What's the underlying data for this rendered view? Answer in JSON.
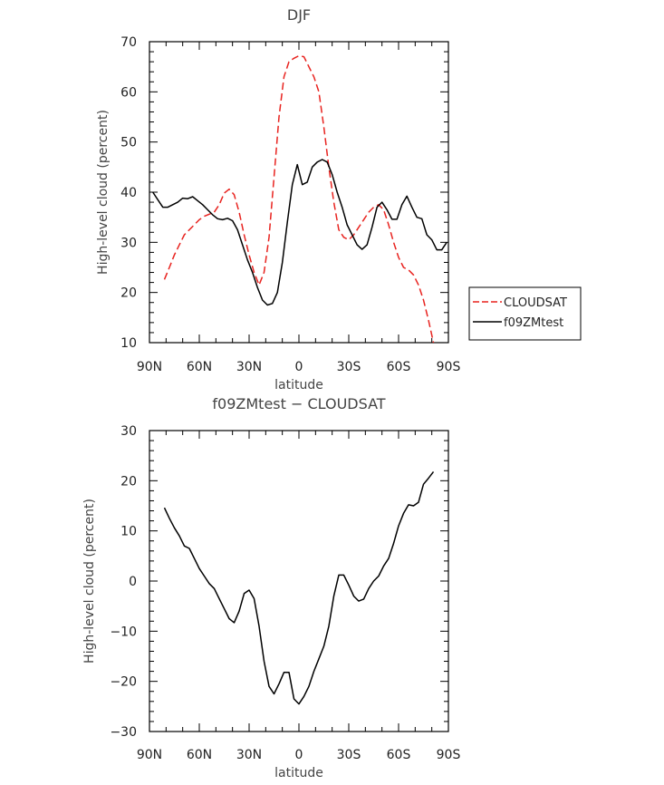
{
  "chart_data": [
    {
      "type": "line",
      "title": "DJF",
      "xlabel": "latitude",
      "ylabel": "High-level cloud (percent)",
      "xlim": [
        90,
        -90
      ],
      "ylim": [
        10,
        70
      ],
      "xticks": [
        90,
        60,
        30,
        0,
        -30,
        -60,
        -90
      ],
      "xtick_labels": [
        "90N",
        "60N",
        "30N",
        "0",
        "30S",
        "60S",
        "90S"
      ],
      "yticks": [
        10,
        20,
        30,
        40,
        50,
        60,
        70
      ],
      "ytick_labels": [
        "10",
        "20",
        "30",
        "40",
        "50",
        "60",
        "70"
      ],
      "legend_position": "right",
      "series": [
        {
          "name": "CLOUDSAT",
          "color": "#e8231f",
          "dash": "dashed",
          "x": [
            81,
            78,
            75,
            72,
            69,
            66,
            63,
            60,
            57,
            54,
            51,
            48,
            45,
            42,
            39,
            36,
            33,
            30,
            27,
            24,
            21,
            18,
            15,
            12,
            9,
            6,
            3,
            0,
            -3,
            -6,
            -9,
            -12,
            -15,
            -18,
            -21,
            -24,
            -27,
            -30,
            -33,
            -36,
            -39,
            -42,
            -45,
            -48,
            -51,
            -54,
            -57,
            -60,
            -63,
            -66,
            -69,
            -72,
            -75,
            -78,
            -81
          ],
          "values": [
            22.6,
            25.0,
            27.5,
            29.5,
            31.5,
            32.5,
            33.5,
            34.5,
            35.2,
            35.6,
            36.0,
            37.5,
            39.8,
            40.6,
            39.5,
            36.0,
            31.5,
            27.5,
            24.0,
            21.5,
            24.0,
            31.0,
            43.0,
            55.0,
            63.0,
            66.0,
            66.7,
            67.2,
            67.0,
            65.0,
            63.0,
            60.0,
            53.0,
            45.0,
            38.0,
            32.5,
            31.0,
            30.5,
            31.5,
            33.0,
            34.5,
            36.0,
            37.0,
            37.5,
            36.5,
            33.5,
            30.0,
            27.0,
            25.0,
            24.5,
            23.5,
            21.5,
            18.5,
            14.5,
            10.0
          ]
        },
        {
          "name": "f09ZMtest",
          "color": "#000000",
          "dash": "solid",
          "x": [
            88,
            85,
            82,
            79,
            76,
            73,
            70,
            67,
            64,
            61,
            58,
            55,
            52,
            49,
            46,
            43,
            40,
            37,
            34,
            31,
            28,
            25,
            22,
            19,
            16,
            13,
            10,
            7,
            4,
            1,
            -2,
            -5,
            -8,
            -11,
            -14,
            -17,
            -20,
            -23,
            -26,
            -29,
            -32,
            -35,
            -38,
            -41,
            -44,
            -47,
            -50,
            -53,
            -56,
            -59,
            -62,
            -65,
            -68,
            -71,
            -74,
            -77,
            -80,
            -83,
            -86,
            -89
          ],
          "values": [
            40.0,
            38.5,
            37.0,
            37.0,
            37.5,
            38.0,
            38.8,
            38.7,
            39.1,
            38.3,
            37.5,
            36.5,
            35.5,
            34.7,
            34.5,
            34.8,
            34.3,
            32.5,
            29.5,
            26.5,
            24.0,
            21.0,
            18.5,
            17.5,
            17.8,
            20.0,
            26.0,
            34.0,
            41.5,
            45.5,
            41.5,
            42.0,
            45.0,
            46.0,
            46.5,
            46.0,
            43.5,
            40.0,
            37.0,
            33.5,
            31.5,
            29.5,
            28.6,
            29.5,
            33.0,
            37.0,
            38.0,
            36.5,
            34.6,
            34.6,
            37.5,
            39.2,
            37.0,
            35.0,
            34.7,
            31.5,
            30.5,
            28.5,
            28.5,
            30.0
          ]
        }
      ]
    },
    {
      "type": "line",
      "title": "f09ZMtest − CLOUDSAT",
      "xlabel": "latitude",
      "ylabel": "High-level cloud (percent)",
      "xlim": [
        90,
        -90
      ],
      "ylim": [
        -30,
        30
      ],
      "xticks": [
        90,
        60,
        30,
        0,
        -30,
        -60,
        -90
      ],
      "xtick_labels": [
        "90N",
        "60N",
        "30N",
        "0",
        "30S",
        "60S",
        "90S"
      ],
      "yticks": [
        -30,
        -20,
        -10,
        0,
        10,
        20,
        30
      ],
      "ytick_labels": [
        "−30",
        "−20",
        "−10",
        "0",
        "10",
        "20",
        "30"
      ],
      "series": [
        {
          "color": "#000000",
          "dash": "solid",
          "x": [
            81,
            78,
            75,
            72,
            69,
            66,
            63,
            60,
            57,
            54,
            51,
            48,
            45,
            42,
            39,
            36,
            33,
            30,
            27,
            24,
            21,
            18,
            15,
            12,
            9,
            6,
            3,
            0,
            -3,
            -6,
            -9,
            -12,
            -15,
            -18,
            -21,
            -24,
            -27,
            -30,
            -33,
            -36,
            -39,
            -42,
            -45,
            -48,
            -51,
            -54,
            -57,
            -60,
            -63,
            -66,
            -69,
            -72,
            -75,
            -78,
            -81
          ],
          "values": [
            14.6,
            12.5,
            10.6,
            9.0,
            7.0,
            6.5,
            4.5,
            2.5,
            1.0,
            -0.5,
            -1.5,
            -3.5,
            -5.5,
            -7.5,
            -8.3,
            -6.0,
            -2.5,
            -1.8,
            -3.5,
            -9.0,
            -16.0,
            -21.0,
            -22.5,
            -20.5,
            -18.2,
            -18.2,
            -23.5,
            -24.5,
            -23.0,
            -21.0,
            -18.0,
            -15.5,
            -13.0,
            -9.0,
            -3.0,
            1.2,
            1.2,
            -0.8,
            -3.0,
            -4.0,
            -3.6,
            -1.5,
            0.0,
            1.0,
            3.0,
            4.5,
            7.5,
            11.0,
            13.5,
            15.2,
            15.0,
            15.7,
            19.3,
            20.5,
            21.8
          ]
        }
      ]
    }
  ]
}
